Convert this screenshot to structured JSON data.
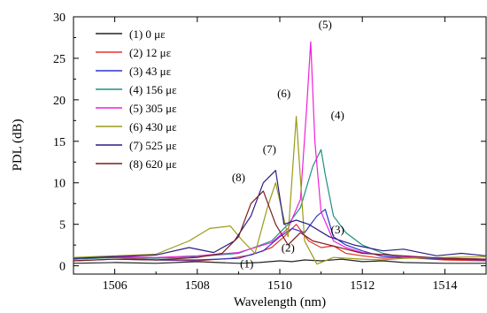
{
  "chart_data": {
    "type": "line",
    "xlabel": "Wavelength (nm)",
    "ylabel": "PDL (dB)",
    "xlim": [
      1505,
      1515
    ],
    "ylim": [
      -1,
      30
    ],
    "xticks": [
      1506,
      1508,
      1510,
      1512,
      1514
    ],
    "xtick_labels": [
      "1506",
      "1508",
      "1510",
      "1512",
      "1514"
    ],
    "yticks": [
      0,
      5,
      10,
      15,
      20,
      25,
      30
    ],
    "ytick_labels": [
      "0",
      "5",
      "10",
      "15",
      "20",
      "25",
      "30"
    ],
    "grid": false,
    "legend_position": "top-left",
    "series": [
      {
        "name": "(1) 0 με",
        "color": "#222222",
        "x": [
          1505,
          1506,
          1507,
          1508,
          1508.5,
          1509,
          1509.5,
          1510,
          1510.3,
          1510.6,
          1511,
          1511.5,
          1512,
          1512.5,
          1513,
          1514,
          1515
        ],
        "y": [
          0.3,
          0.4,
          0.3,
          0.5,
          0.4,
          0.3,
          0.4,
          0.6,
          0.5,
          0.7,
          0.6,
          0.8,
          0.5,
          0.6,
          0.4,
          0.3,
          0.3
        ]
      },
      {
        "name": "(2) 12 με",
        "color": "#e8312e",
        "x": [
          1505,
          1506,
          1507,
          1508,
          1508.8,
          1509.3,
          1509.8,
          1510.1,
          1510.4,
          1510.7,
          1511,
          1511.3,
          1511.6,
          1512,
          1512.5,
          1513,
          1514,
          1515
        ],
        "y": [
          0.8,
          1.0,
          0.7,
          0.6,
          0.9,
          1.3,
          2.2,
          3.5,
          5.0,
          3.0,
          2.2,
          2.4,
          1.5,
          1.2,
          0.9,
          1.0,
          0.7,
          0.6
        ]
      },
      {
        "name": "(3) 43 με",
        "color": "#2b35c8",
        "x": [
          1505,
          1506,
          1507,
          1508,
          1509,
          1509.6,
          1510,
          1510.3,
          1510.6,
          1510.9,
          1511.1,
          1511.3,
          1511.6,
          1512,
          1512.5,
          1513,
          1514,
          1515
        ],
        "y": [
          0.6,
          0.8,
          0.7,
          0.7,
          0.9,
          1.8,
          3.5,
          4.5,
          4.0,
          6.0,
          6.8,
          3.5,
          2.5,
          1.8,
          1.1,
          1.0,
          0.8,
          0.7
        ]
      },
      {
        "name": "(4) 156 με",
        "color": "#1f8f82",
        "x": [
          1505,
          1506,
          1507,
          1508,
          1509,
          1509.8,
          1510.2,
          1510.5,
          1510.8,
          1511,
          1511.1,
          1511.3,
          1511.6,
          1512,
          1512.5,
          1513,
          1514,
          1515
        ],
        "y": [
          0.8,
          1.0,
          0.9,
          1.1,
          1.5,
          3.0,
          5.0,
          7.0,
          12.0,
          14.0,
          11.0,
          6.0,
          4.0,
          2.5,
          1.5,
          1.0,
          0.9,
          0.8
        ]
      },
      {
        "name": "(5) 305 με",
        "color": "#ee22d8",
        "x": [
          1505,
          1506,
          1507,
          1508,
          1509,
          1509.8,
          1510.2,
          1510.5,
          1510.65,
          1510.75,
          1510.85,
          1511,
          1511.3,
          1511.6,
          1512,
          1512.5,
          1513,
          1514,
          1515
        ],
        "y": [
          0.9,
          1.1,
          1.0,
          1.2,
          1.6,
          2.8,
          4.5,
          8.0,
          19.0,
          27.0,
          15.0,
          6.5,
          3.0,
          2.2,
          1.6,
          1.3,
          1.1,
          0.9,
          0.8
        ]
      },
      {
        "name": "(6) 430 με",
        "color": "#9a9a1a",
        "x": [
          1505,
          1506,
          1507,
          1507.8,
          1508.3,
          1508.8,
          1509.1,
          1509.4,
          1509.7,
          1509.9,
          1510.2,
          1510.4,
          1510.6,
          1510.9,
          1511.3,
          1512,
          1512.5,
          1513,
          1514,
          1515
        ],
        "y": [
          1.0,
          1.2,
          1.4,
          3.0,
          4.5,
          4.8,
          3.0,
          1.5,
          7.0,
          10.0,
          3.5,
          18.0,
          3.0,
          0.2,
          1.0,
          0.8,
          0.7,
          0.9,
          1.0,
          1.1
        ]
      },
      {
        "name": "(7) 525 με",
        "color": "#2a1e86",
        "x": [
          1505,
          1506,
          1507,
          1507.8,
          1508.4,
          1508.9,
          1509.3,
          1509.6,
          1509.9,
          1510.1,
          1510.4,
          1510.7,
          1511.2,
          1511.8,
          1512.5,
          1513,
          1513.8,
          1514.4,
          1515
        ],
        "y": [
          0.9,
          1.1,
          1.3,
          2.2,
          1.6,
          3.0,
          6.0,
          10.0,
          11.5,
          5.0,
          5.5,
          5.0,
          3.5,
          2.5,
          1.8,
          2.0,
          1.2,
          1.5,
          1.2
        ]
      },
      {
        "name": "(8) 620 με",
        "color": "#7a1d1d",
        "x": [
          1505,
          1506,
          1507,
          1508,
          1508.6,
          1509,
          1509.3,
          1509.6,
          1509.9,
          1510.2,
          1510.5,
          1510.8,
          1511.2,
          1511.6,
          1512,
          1513,
          1514,
          1515
        ],
        "y": [
          0.6,
          0.8,
          0.7,
          1.0,
          1.5,
          3.5,
          7.5,
          9.0,
          5.0,
          2.5,
          4.0,
          3.0,
          2.5,
          2.0,
          1.5,
          1.2,
          0.9,
          0.8
        ]
      }
    ],
    "annotations": [
      {
        "text": "(1)",
        "x": 1509.2,
        "y": -0.2
      },
      {
        "text": "(2)",
        "x": 1510.2,
        "y": 1.7
      },
      {
        "text": "(3)",
        "x": 1511.4,
        "y": 3.9
      },
      {
        "text": "(4)",
        "x": 1511.4,
        "y": 17.7
      },
      {
        "text": "(5)",
        "x": 1511.1,
        "y": 28.6
      },
      {
        "text": "(6)",
        "x": 1510.1,
        "y": 20.3
      },
      {
        "text": "(7)",
        "x": 1509.75,
        "y": 13.6
      },
      {
        "text": "(8)",
        "x": 1509.0,
        "y": 10.2
      }
    ]
  }
}
